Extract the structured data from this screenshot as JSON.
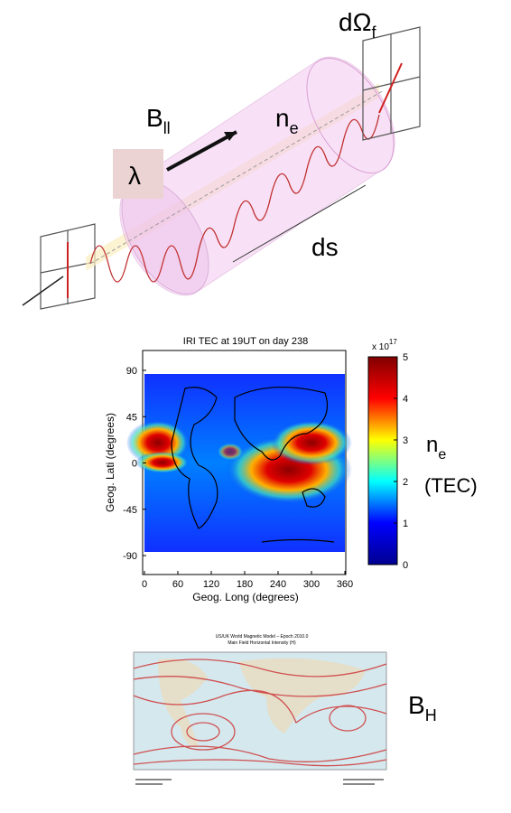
{
  "diagram": {
    "solid_angle": {
      "base": "dΩ",
      "sub": "f"
    },
    "field": {
      "base": "B",
      "sub": "ll"
    },
    "density": {
      "base": "n",
      "sub": "e"
    },
    "wavelength": "λ",
    "path_length": "ds"
  },
  "tec_map": {
    "title": "IRI TEC at 19UT on day 238",
    "y_label": "Geog. Lati (degrees)",
    "x_label": "Geog. Long (degrees)",
    "x_ticks": [
      0,
      60,
      120,
      180,
      240,
      300,
      360
    ],
    "y_ticks": [
      90,
      45,
      0,
      -45,
      -90
    ],
    "colorbar_ticks": [
      0,
      1,
      2,
      3,
      4,
      5
    ],
    "colorbar_scale": {
      "base": "x 10",
      "exp": "17"
    },
    "side_label": {
      "base": "n",
      "sub": "e",
      "unit": "(TEC)"
    }
  },
  "field_map": {
    "title": "US/UK World Magnetic Model – Epoch 2010.0",
    "subtitle": "Main Field Horizontal Intensity (H)",
    "side_label": {
      "base": "B",
      "sub": "H"
    }
  }
}
